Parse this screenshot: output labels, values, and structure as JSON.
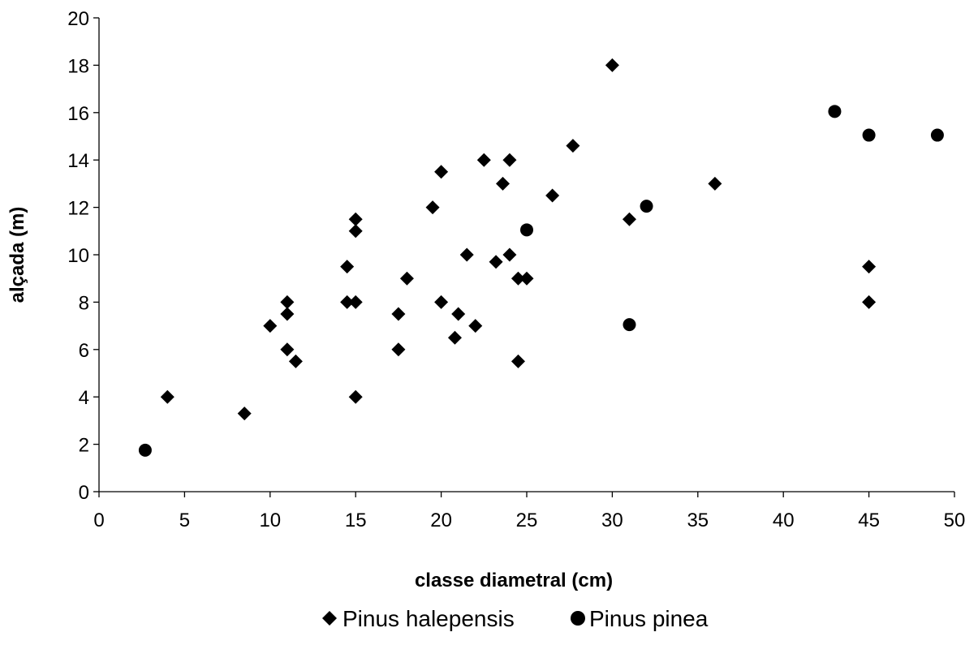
{
  "chart_data": {
    "type": "scatter",
    "title": "",
    "xlabel": "classe diametral (cm)",
    "ylabel": "alçada (m)",
    "xlim": [
      0,
      50
    ],
    "ylim": [
      0,
      20
    ],
    "x_ticks": [
      0,
      5,
      10,
      15,
      20,
      25,
      30,
      35,
      40,
      45,
      50
    ],
    "y_ticks": [
      0,
      2,
      4,
      6,
      8,
      10,
      12,
      14,
      16,
      18,
      20
    ],
    "grid": false,
    "legend_position": "bottom",
    "series": [
      {
        "name": "Pinus halepensis",
        "marker": "diamond",
        "color": "#000000",
        "points": [
          [
            4,
            4
          ],
          [
            8.5,
            3.3
          ],
          [
            10,
            7
          ],
          [
            11,
            8
          ],
          [
            11,
            7.5
          ],
          [
            11,
            6
          ],
          [
            11.5,
            5.5
          ],
          [
            14.5,
            9.5
          ],
          [
            14.5,
            8
          ],
          [
            15,
            11.5
          ],
          [
            15,
            11
          ],
          [
            15,
            8
          ],
          [
            15,
            4
          ],
          [
            17.5,
            7.5
          ],
          [
            17.5,
            6
          ],
          [
            18,
            9
          ],
          [
            19.5,
            12
          ],
          [
            20,
            13.5
          ],
          [
            20,
            8
          ],
          [
            20.8,
            6.5
          ],
          [
            21,
            7.5
          ],
          [
            21.5,
            10
          ],
          [
            22,
            7
          ],
          [
            22.5,
            14
          ],
          [
            23.2,
            9.7
          ],
          [
            23.6,
            13
          ],
          [
            24,
            14
          ],
          [
            24,
            10
          ],
          [
            24.5,
            9
          ],
          [
            24.5,
            5.5
          ],
          [
            25,
            9
          ],
          [
            26.5,
            12.5
          ],
          [
            27.7,
            14.6
          ],
          [
            30,
            18
          ],
          [
            31,
            11.5
          ],
          [
            36,
            13
          ],
          [
            45,
            9.5
          ],
          [
            45,
            8
          ]
        ]
      },
      {
        "name": "Pinus pinea",
        "marker": "circle",
        "color": "#000000",
        "points": [
          [
            2.7,
            1.75
          ],
          [
            25,
            11.05
          ],
          [
            31,
            7.05
          ],
          [
            32,
            12.05
          ],
          [
            43,
            16.05
          ],
          [
            45,
            15.05
          ],
          [
            49,
            15.05
          ]
        ]
      }
    ]
  }
}
